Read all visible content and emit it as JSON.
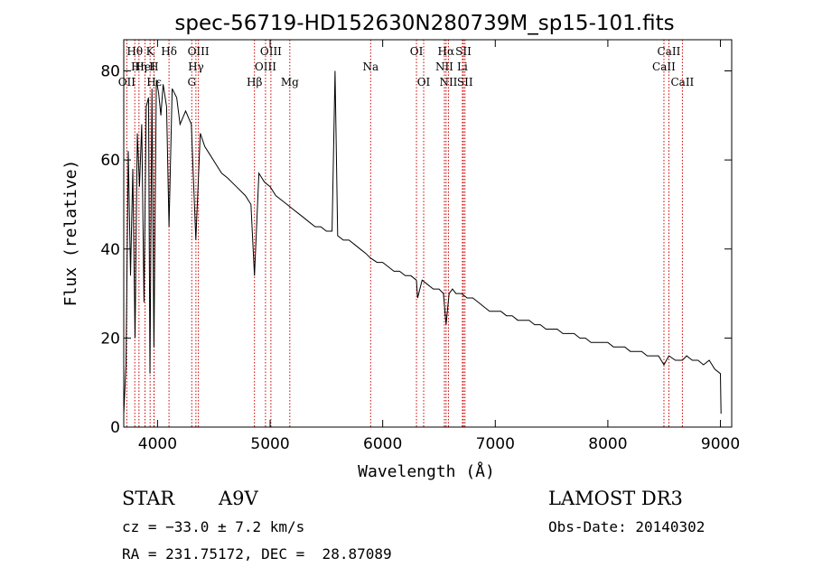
{
  "chart_data": {
    "type": "line",
    "title": "spec-56719-HD152630N280739M_sp15-101.fits",
    "xlabel": "Wavelength (Å)",
    "ylabel": "Flux (relative)",
    "xlim": [
      3700,
      9100
    ],
    "ylim": [
      0,
      87
    ],
    "x_ticks": [
      4000,
      5000,
      6000,
      7000,
      8000,
      9000
    ],
    "y_ticks": [
      0,
      20,
      40,
      60,
      80
    ],
    "grid": false,
    "series": [
      {
        "name": "spectrum",
        "x": [
          3700,
          3720,
          3740,
          3760,
          3780,
          3800,
          3820,
          3840,
          3860,
          3880,
          3900,
          3920,
          3933,
          3950,
          3968,
          3990,
          4010,
          4030,
          4050,
          4080,
          4102,
          4130,
          4170,
          4200,
          4250,
          4300,
          4340,
          4380,
          4420,
          4470,
          4520,
          4570,
          4620,
          4700,
          4780,
          4830,
          4861,
          4900,
          4950,
          5000,
          5050,
          5100,
          5150,
          5200,
          5250,
          5300,
          5350,
          5400,
          5450,
          5500,
          5550,
          5577,
          5600,
          5650,
          5700,
          5750,
          5800,
          5850,
          5890,
          5950,
          6000,
          6050,
          6100,
          6150,
          6200,
          6250,
          6300,
          6310,
          6350,
          6400,
          6450,
          6500,
          6540,
          6563,
          6590,
          6620,
          6650,
          6700,
          6750,
          6800,
          6850,
          6900,
          6950,
          7000,
          7050,
          7100,
          7150,
          7200,
          7250,
          7300,
          7350,
          7400,
          7450,
          7500,
          7550,
          7600,
          7650,
          7700,
          7750,
          7800,
          7850,
          7900,
          7950,
          8000,
          8050,
          8100,
          8150,
          8200,
          8250,
          8300,
          8350,
          8400,
          8450,
          8498,
          8542,
          8600,
          8662,
          8700,
          8750,
          8800,
          8850,
          8900,
          8950,
          9000,
          9005
        ],
        "y": [
          3,
          14,
          62,
          34,
          58,
          20,
          66,
          54,
          68,
          28,
          72,
          74,
          12,
          76,
          18,
          78,
          75,
          70,
          77,
          72,
          45,
          76,
          74,
          68,
          71,
          68,
          42,
          66,
          63,
          61,
          59,
          57,
          56,
          54,
          52,
          50,
          34,
          57,
          55,
          54,
          52,
          51,
          50,
          49,
          48,
          47,
          46,
          45,
          45,
          44,
          44,
          80,
          43,
          42,
          42,
          41,
          40,
          39,
          38,
          37,
          37,
          36,
          35,
          35,
          34,
          34,
          33,
          29,
          33,
          32,
          31,
          31,
          30,
          23,
          30,
          31,
          30,
          30,
          29,
          29,
          28,
          27,
          26,
          26,
          26,
          25,
          25,
          24,
          24,
          24,
          23,
          23,
          22,
          22,
          22,
          21,
          21,
          21,
          20,
          20,
          19,
          19,
          19,
          19,
          18,
          18,
          18,
          17,
          17,
          17,
          16,
          16,
          16,
          14,
          16,
          15,
          15,
          16,
          15,
          15,
          14,
          15,
          13,
          12,
          3
        ]
      }
    ],
    "lines": [
      {
        "label": "Hθ",
        "wave": 3798,
        "tier": 0
      },
      {
        "label": "OII",
        "wave": 3727,
        "tier": 2
      },
      {
        "label": "Hη",
        "wave": 3835,
        "tier": 1
      },
      {
        "label": "HeI",
        "wave": 3889,
        "tier": 1
      },
      {
        "label": "Hε",
        "wave": 3970,
        "tier": 2
      },
      {
        "label": "K",
        "wave": 3934,
        "tier": 0
      },
      {
        "label": "H",
        "wave": 3968,
        "tier": 1
      },
      {
        "label": "Hδ",
        "wave": 4102,
        "tier": 0
      },
      {
        "label": "OIII",
        "wave": 4363,
        "tier": 0
      },
      {
        "label": "Hγ",
        "wave": 4341,
        "tier": 1
      },
      {
        "label": "G",
        "wave": 4304,
        "tier": 2
      },
      {
        "label": "OIII",
        "wave": 5007,
        "tier": 0
      },
      {
        "label": "OIII",
        "wave": 4959,
        "tier": 1
      },
      {
        "label": "Hβ",
        "wave": 4861,
        "tier": 2
      },
      {
        "label": "Mg",
        "wave": 5175,
        "tier": 2
      },
      {
        "label": "Na",
        "wave": 5893,
        "tier": 1
      },
      {
        "label": "OI",
        "wave": 6300,
        "tier": 0
      },
      {
        "label": "OI",
        "wave": 6364,
        "tier": 2
      },
      {
        "label": "Hα",
        "wave": 6563,
        "tier": 0
      },
      {
        "label": "NII",
        "wave": 6548,
        "tier": 1
      },
      {
        "label": "NII",
        "wave": 6584,
        "tier": 2
      },
      {
        "label": "SII",
        "wave": 6717,
        "tier": 0
      },
      {
        "label": "Li",
        "wave": 6708,
        "tier": 1
      },
      {
        "label": "SII",
        "wave": 6731,
        "tier": 2
      },
      {
        "label": "CaII",
        "wave": 8542,
        "tier": 0
      },
      {
        "label": "CaII",
        "wave": 8498,
        "tier": 1
      },
      {
        "label": "CaII",
        "wave": 8662,
        "tier": 2
      }
    ]
  },
  "info": {
    "object_class": "STAR",
    "subclass": "A9V",
    "survey": "LAMOST DR3",
    "cz": "cz = −33.0 ± 7.2 km/s",
    "obs_date": "Obs-Date: 20140302",
    "coords": "RA = 231.75172, DEC =  28.87089"
  }
}
